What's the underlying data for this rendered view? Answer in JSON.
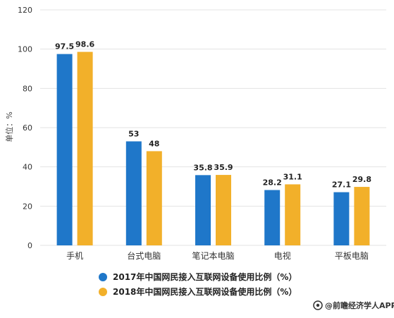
{
  "chart_data": {
    "type": "bar",
    "categories": [
      "手机",
      "台式电脑",
      "笔记本电脑",
      "电视",
      "平板电脑"
    ],
    "series": [
      {
        "name": "2017年中国网民接入互联网设备使用比例（%）",
        "values": [
          97.5,
          53,
          35.8,
          28.2,
          27.1
        ],
        "color": "#1f77c9"
      },
      {
        "name": "2018年中国网民接入互联网设备使用比例（%）",
        "values": [
          98.6,
          48,
          35.9,
          31.1,
          29.8
        ],
        "color": "#f2b02a"
      }
    ],
    "value_labels": [
      [
        "97.5",
        "53",
        "35.8",
        "28.2",
        "27.1"
      ],
      [
        "98.6",
        "48",
        "35.9",
        "31.1",
        "29.8"
      ]
    ],
    "ylabel": "单位：%",
    "ylim": [
      0,
      120
    ],
    "yticks": [
      0,
      20,
      40,
      60,
      80,
      100,
      120
    ],
    "grid": true,
    "legend_position": "bottom"
  },
  "footer": {
    "brand": "@前瞻经济学人APP",
    "icon": "brand-logo-icon"
  }
}
